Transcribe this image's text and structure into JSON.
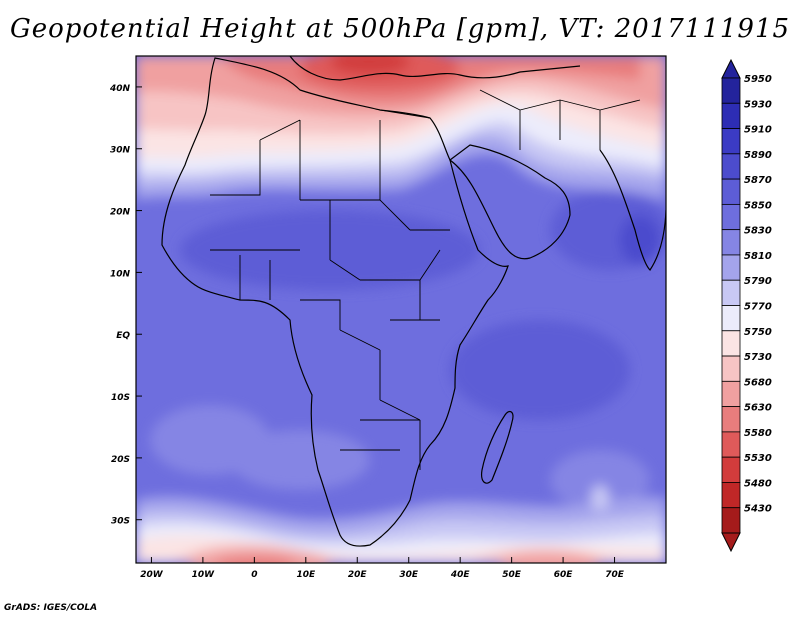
{
  "title": "Geopotential Height at 500hPa [gpm], VT: 2017111915",
  "footer": "GrADS: IGES/COLA",
  "map": {
    "lat_labels": [
      "40N",
      "30N",
      "20N",
      "10N",
      "EQ",
      "10S",
      "20S",
      "30S"
    ],
    "lon_labels": [
      "20W",
      "10W",
      "0",
      "10E",
      "20E",
      "30E",
      "40E",
      "50E",
      "60E",
      "70E"
    ],
    "lat_range": [
      -37,
      45
    ],
    "lon_range": [
      -23,
      80
    ],
    "lats": [
      40,
      30,
      20,
      10,
      0,
      -10,
      -20,
      -30
    ],
    "lons": [
      -20,
      -10,
      0,
      10,
      20,
      30,
      40,
      50,
      60,
      70
    ]
  },
  "colorbar": {
    "levels": [
      "5950",
      "5930",
      "5910",
      "5890",
      "5870",
      "5850",
      "5830",
      "5810",
      "5790",
      "5770",
      "5750",
      "5730",
      "5680",
      "5630",
      "5580",
      "5530",
      "5480",
      "5430"
    ],
    "colors": [
      "#23239c",
      "#2d2db4",
      "#3b3bc4",
      "#4c4ccd",
      "#5d5dd6",
      "#6e6ede",
      "#8585e4",
      "#a4a4ec",
      "#c8c8f4",
      "#ececfb",
      "#fbe4e4",
      "#f7c4c4",
      "#f0a0a0",
      "#e87d7d",
      "#df5a5a",
      "#d23c3c",
      "#c02727",
      "#a51b1b"
    ]
  }
}
